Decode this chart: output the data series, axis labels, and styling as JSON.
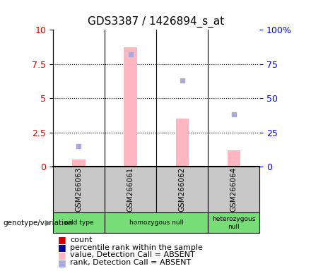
{
  "title": "GDS3387 / 1426894_s_at",
  "samples": [
    "GSM266063",
    "GSM266061",
    "GSM266062",
    "GSM266064"
  ],
  "values_absent": [
    0.5,
    8.7,
    3.5,
    1.2
  ],
  "ranks_absent_scaled": [
    1.5,
    8.2,
    6.3,
    3.8
  ],
  "ylim_left": [
    0,
    10
  ],
  "ylim_right": [
    0,
    100
  ],
  "yticks_left": [
    0,
    2.5,
    5.0,
    7.5,
    10
  ],
  "yticks_right": [
    0,
    25,
    50,
    75,
    100
  ],
  "color_bar_absent": "#FFB6C1",
  "color_rank_absent": "#AAAADD",
  "color_count": "#CC0000",
  "color_percentile": "#000099",
  "bg_sample_labels": "#C8C8C8",
  "bg_genotype": "#77DD77",
  "title_fontsize": 11,
  "tick_fontsize": 9,
  "legend_fontsize": 8,
  "group_configs": [
    [
      0,
      1,
      "wild type"
    ],
    [
      1,
      2,
      "homozygous null"
    ],
    [
      3,
      1,
      "heterozygous\nnull"
    ]
  ]
}
